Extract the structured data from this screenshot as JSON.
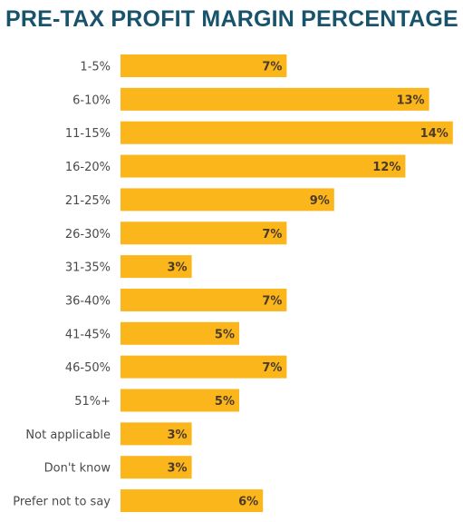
{
  "title": "PRE-TAX PROFIT MARGIN PERCENTAGE",
  "colors": {
    "bar": "#fbb61b",
    "title": "#17536b"
  },
  "chart_data": {
    "type": "bar",
    "orientation": "horizontal",
    "title": "PRE-TAX PROFIT MARGIN PERCENTAGE",
    "categories": [
      "1-5%",
      "6-10%",
      "11-15%",
      "16-20%",
      "21-25%",
      "26-30%",
      "31-35%",
      "36-40%",
      "41-45%",
      "46-50%",
      "51%+",
      "Not applicable",
      "Don't know",
      "Prefer not to say"
    ],
    "values": [
      7,
      13,
      14,
      12,
      9,
      7,
      3,
      7,
      5,
      7,
      5,
      3,
      3,
      6
    ],
    "labels": [
      "7%",
      "13%",
      "14%",
      "12%",
      "9%",
      "7%",
      "3%",
      "7%",
      "5%",
      "7%",
      "5%",
      "3%",
      "3%",
      "6%"
    ],
    "xlim": [
      0,
      14
    ],
    "grid": false,
    "legend": "none"
  }
}
